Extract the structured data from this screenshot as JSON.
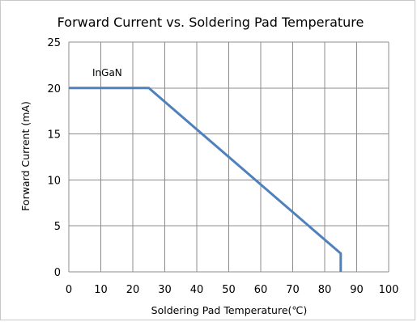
{
  "chart_data": {
    "type": "line",
    "title": "Forward Current  vs. Soldering  Pad  Temperature",
    "xlabel": "Soldering  Pad  Temperature(℃)",
    "ylabel": "Forward  Current  (mA)",
    "xlim": [
      0,
      100
    ],
    "ylim": [
      0,
      25
    ],
    "xticks": [
      0,
      10,
      20,
      30,
      40,
      50,
      60,
      70,
      80,
      90,
      100
    ],
    "yticks": [
      0,
      5,
      10,
      15,
      20,
      25
    ],
    "grid": true,
    "series": [
      {
        "name": "InGaN",
        "color": "#4f81bd",
        "points": [
          [
            0,
            20
          ],
          [
            25,
            20
          ],
          [
            85,
            2
          ],
          [
            85,
            0
          ]
        ]
      }
    ]
  }
}
